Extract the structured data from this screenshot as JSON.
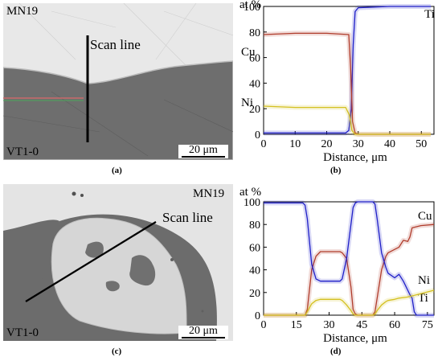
{
  "panels": {
    "a": {
      "label": "(a)",
      "top_material": "MN19",
      "bottom_material": "VT1-0",
      "scan_label": "Scan line",
      "scale_bar": "20 μm",
      "colors": {
        "upper_phase": "#e8e8e8",
        "lower_phase": "#6e6e6e"
      }
    },
    "b": {
      "label": "(b)"
    },
    "c": {
      "label": "(c)",
      "top_material": "MN19",
      "bottom_material": "VT1-0",
      "scan_label": "Scan line",
      "scale_bar": "20 μm",
      "colors": {
        "light_phase": "#e4e4e4",
        "dark_phase": "#6c6c6c",
        "inclusion": "#707070"
      }
    },
    "d": {
      "label": "(d)"
    }
  },
  "chart_data": [
    {
      "type": "line",
      "id": "b",
      "ylabel": "at %",
      "xlabel": "Distance, μm",
      "xlim": [
        0,
        54
      ],
      "ylim": [
        0,
        100
      ],
      "xticks": [
        0,
        10,
        20,
        30,
        40,
        50
      ],
      "yticks": [
        0,
        20,
        40,
        60,
        80,
        100
      ],
      "series": [
        {
          "name": "Ti",
          "color": "#1f1fc8",
          "x": [
            0,
            26,
            27,
            27.8,
            28.4,
            29,
            30,
            40,
            53
          ],
          "y": [
            1,
            1,
            3,
            20,
            70,
            96,
            99,
            100,
            100
          ]
        },
        {
          "name": "Cu",
          "color": "#b03c2c",
          "x": [
            0,
            10,
            20,
            27,
            27.6,
            28.2,
            29,
            30,
            53
          ],
          "y": [
            78,
            79,
            79,
            78,
            50,
            10,
            1,
            0,
            0
          ]
        },
        {
          "name": "Ni",
          "color": "#d4c020",
          "x": [
            0,
            10,
            20,
            26,
            27.2,
            28,
            29,
            53
          ],
          "y": [
            22,
            21,
            21,
            21,
            15,
            3,
            0,
            0
          ]
        }
      ]
    },
    {
      "type": "line",
      "id": "d",
      "ylabel": "at %",
      "xlabel": "Distance, μm",
      "xlim": [
        0,
        78
      ],
      "ylim": [
        0,
        100
      ],
      "xticks": [
        0,
        15,
        30,
        45,
        60,
        75
      ],
      "yticks": [
        0,
        20,
        40,
        60,
        80,
        100
      ],
      "series": [
        {
          "name": "Cu",
          "color": "#b03c2c",
          "x": [
            0,
            19,
            20,
            22,
            24,
            26,
            35,
            36,
            38,
            40,
            41,
            42,
            43,
            50,
            51,
            52,
            54,
            56,
            57,
            60,
            62,
            64,
            66,
            67,
            68,
            72,
            78
          ],
          "y": [
            0,
            0,
            5,
            40,
            52,
            56,
            56,
            55,
            50,
            25,
            5,
            1,
            0,
            0,
            3,
            15,
            40,
            52,
            55,
            58,
            60,
            66,
            65,
            69,
            77,
            79,
            80
          ]
        },
        {
          "name": "Ti",
          "color": "#1f1fc8",
          "x": [
            0,
            18,
            19,
            20,
            22,
            24,
            26,
            35,
            36,
            38,
            40,
            41,
            42,
            43,
            50,
            51,
            52,
            54,
            56,
            57,
            60,
            62,
            64,
            66,
            67,
            68,
            69,
            70,
            78
          ],
          "y": [
            99,
            99,
            97,
            85,
            45,
            32,
            30,
            30,
            32,
            50,
            80,
            95,
            99,
            100,
            100,
            98,
            85,
            55,
            42,
            37,
            33,
            36,
            30,
            22,
            18,
            15,
            3,
            0,
            0
          ]
        },
        {
          "name": "Ni",
          "color": "#d4c020",
          "x": [
            0,
            19,
            20,
            22,
            24,
            26,
            35,
            36,
            38,
            40,
            41,
            42,
            43,
            50,
            51,
            52,
            54,
            56,
            57,
            60,
            62,
            66,
            70,
            78
          ],
          "y": [
            0,
            0,
            3,
            10,
            13,
            14,
            14,
            13,
            9,
            4,
            1,
            0,
            0,
            0,
            1,
            4,
            9,
            12,
            13,
            14,
            15,
            16,
            18,
            22
          ]
        }
      ]
    }
  ]
}
